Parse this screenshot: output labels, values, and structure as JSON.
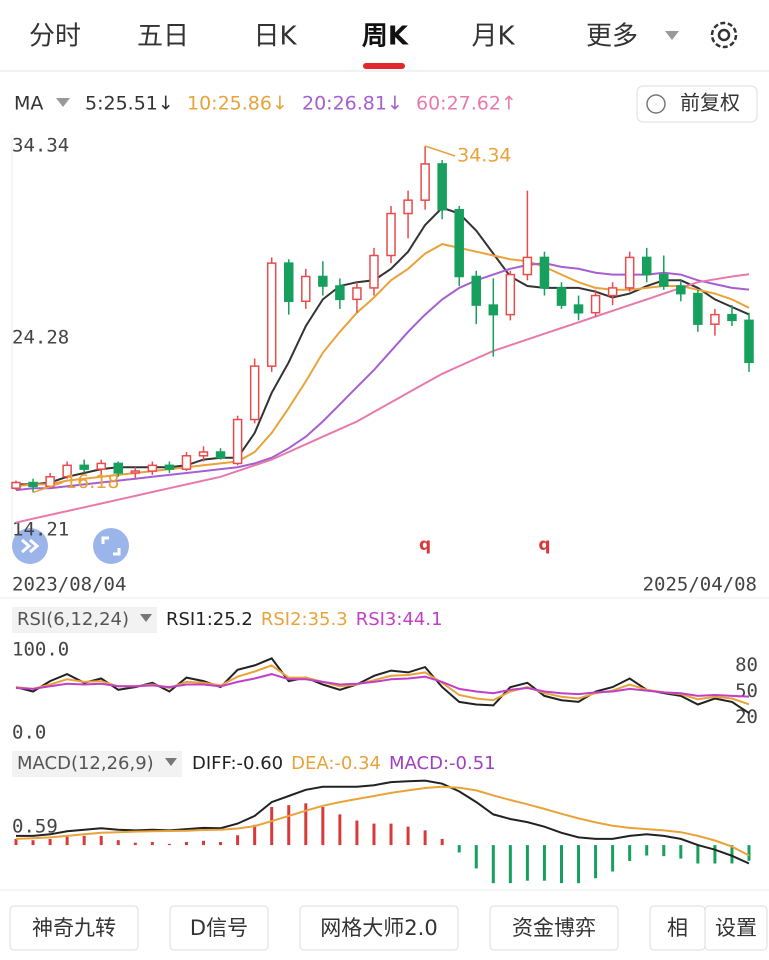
{
  "tabs": [
    "分时",
    "五日",
    "日K",
    "周K",
    "月K",
    "更多"
  ],
  "active_tab": 3,
  "buttons": [
    "神奇九转",
    "D信号",
    "网格大师2.0",
    "资金博弈",
    "相",
    "设置"
  ],
  "chart_data": [
    {
      "type": "candlestick",
      "indicator": "MA",
      "adjust": "前复权",
      "x_labels": [
        "2023/08/04",
        "2025/04/08"
      ],
      "up_color": "#e84b4b",
      "down_color": "#17a05d",
      "open": [
        16.4,
        16.7,
        16.5,
        17.0,
        17.6,
        17.4,
        17.7,
        17.2,
        17.3,
        17.6,
        17.4,
        18.1,
        18.3,
        17.7,
        20.0,
        22.8,
        28.2,
        26.2,
        27.5,
        27.0,
        26.3,
        26.9,
        28.6,
        30.8,
        31.5,
        33.4,
        31.0,
        27.5,
        26.0,
        25.5,
        27.6,
        28.5,
        26.9,
        26.0,
        25.6,
        26.5,
        26.9,
        28.5,
        27.6,
        27.0,
        26.6,
        25.0,
        25.5,
        25.2
      ],
      "high": [
        16.8,
        16.9,
        17.2,
        17.8,
        17.9,
        17.9,
        17.8,
        17.5,
        17.8,
        17.8,
        18.3,
        18.6,
        18.5,
        20.2,
        23.2,
        28.5,
        28.4,
        27.9,
        28.3,
        27.4,
        27.2,
        29.0,
        31.2,
        32.0,
        34.34,
        33.6,
        31.2,
        27.8,
        27.4,
        27.8,
        32.0,
        28.8,
        27.2,
        26.5,
        26.8,
        27.2,
        28.8,
        29.0,
        28.6,
        27.3,
        26.8,
        25.8,
        26.0,
        25.6
      ],
      "low": [
        16.3,
        16.18,
        16.4,
        16.9,
        17.2,
        17.1,
        17.0,
        16.9,
        17.1,
        17.2,
        17.3,
        17.8,
        17.9,
        17.6,
        19.8,
        22.5,
        25.5,
        25.8,
        26.5,
        25.8,
        25.6,
        26.5,
        28.2,
        29.5,
        31.0,
        30.5,
        27.0,
        25.0,
        23.3,
        25.2,
        27.3,
        26.5,
        25.8,
        25.2,
        25.4,
        26.0,
        26.7,
        27.2,
        26.8,
        26.2,
        24.6,
        24.4,
        24.9,
        22.5
      ],
      "close": [
        16.7,
        16.5,
        17.0,
        17.6,
        17.4,
        17.7,
        17.2,
        17.3,
        17.6,
        17.4,
        18.1,
        18.3,
        18.0,
        20.0,
        22.8,
        28.2,
        26.2,
        27.5,
        27.0,
        26.3,
        26.9,
        28.6,
        30.8,
        31.5,
        33.4,
        31.0,
        27.5,
        26.0,
        25.5,
        27.6,
        28.5,
        26.9,
        26.0,
        25.6,
        26.5,
        26.9,
        28.5,
        27.6,
        27.0,
        26.6,
        25.0,
        25.5,
        25.2,
        23.0
      ],
      "series": [
        {
          "name": "5",
          "legend": "5:25.51↓",
          "color": "#333333",
          "values": [
            16.6,
            16.6,
            16.7,
            17.0,
            17.2,
            17.4,
            17.5,
            17.5,
            17.5,
            17.5,
            17.6,
            17.9,
            18.0,
            18.0,
            19.3,
            21.4,
            23.0,
            24.9,
            26.3,
            27.0,
            27.2,
            27.3,
            27.9,
            28.8,
            30.2,
            31.1,
            30.8,
            29.9,
            28.7,
            27.5,
            27.0,
            26.9,
            26.9,
            26.9,
            26.7,
            26.4,
            26.6,
            27.0,
            27.3,
            27.3,
            26.9,
            26.3,
            25.9,
            25.51
          ]
        },
        {
          "name": "10",
          "legend": "10:25.86↓",
          "color": "#e8a33a",
          "values": [
            16.5,
            16.6,
            16.6,
            16.8,
            16.9,
            17.0,
            17.1,
            17.2,
            17.3,
            17.4,
            17.5,
            17.6,
            17.7,
            17.8,
            18.3,
            19.3,
            20.6,
            22.0,
            23.5,
            24.6,
            25.6,
            26.4,
            27.3,
            27.9,
            28.7,
            29.2,
            29.0,
            28.8,
            28.6,
            28.4,
            28.3,
            28.0,
            27.6,
            27.2,
            26.9,
            26.8,
            26.8,
            26.9,
            27.0,
            27.0,
            26.8,
            26.6,
            26.3,
            25.86
          ]
        },
        {
          "name": "20",
          "legend": "20:26.81↓",
          "color": "#a65fd0",
          "values": [
            16.3,
            16.4,
            16.4,
            16.5,
            16.6,
            16.7,
            16.8,
            16.9,
            17.0,
            17.1,
            17.2,
            17.3,
            17.4,
            17.5,
            17.7,
            18.0,
            18.5,
            19.1,
            19.9,
            20.8,
            21.7,
            22.6,
            23.6,
            24.6,
            25.5,
            26.3,
            26.9,
            27.3,
            27.6,
            27.9,
            28.1,
            28.2,
            28.0,
            27.9,
            27.7,
            27.6,
            27.6,
            27.6,
            27.7,
            27.6,
            27.3,
            27.1,
            26.9,
            26.81
          ]
        },
        {
          "name": "60",
          "legend": "60:27.62↑",
          "color": "#e87aaa",
          "values": [
            14.6,
            14.8,
            15.0,
            15.2,
            15.4,
            15.6,
            15.8,
            16.0,
            16.2,
            16.4,
            16.6,
            16.8,
            17.0,
            17.3,
            17.6,
            17.9,
            18.3,
            18.7,
            19.1,
            19.5,
            19.9,
            20.4,
            20.9,
            21.4,
            21.9,
            22.4,
            22.8,
            23.2,
            23.6,
            23.9,
            24.2,
            24.5,
            24.8,
            25.1,
            25.4,
            25.7,
            26.0,
            26.3,
            26.6,
            26.9,
            27.2,
            27.35,
            27.5,
            27.62
          ]
        }
      ],
      "ylim": [
        14.21,
        34.34
      ],
      "yticks": [
        34.34,
        24.28,
        14.21
      ],
      "annotations": [
        {
          "text": "34.34",
          "at": 24
        },
        {
          "text": "16.18",
          "at": 1
        }
      ],
      "markers": [
        {
          "text": "q",
          "at": 24
        },
        {
          "text": "q",
          "at": 31
        }
      ]
    },
    {
      "type": "line",
      "title": "RSI(6,12,24)",
      "ylim": [
        0,
        100
      ],
      "yticks": [
        {
          "value": 100,
          "label": "100.0"
        },
        {
          "value": 0,
          "label": "0.0"
        }
      ],
      "y2lim": [
        0,
        100
      ],
      "y2ticks": [
        80,
        50,
        20
      ],
      "series": [
        {
          "name": "RSI1",
          "legend": "RSI1:25.2",
          "color": "#222222",
          "values": [
            55,
            50,
            62,
            70,
            60,
            65,
            52,
            55,
            60,
            50,
            66,
            62,
            55,
            75,
            80,
            88,
            62,
            66,
            58,
            52,
            58,
            68,
            74,
            72,
            78,
            55,
            38,
            35,
            34,
            55,
            60,
            45,
            40,
            38,
            50,
            55,
            65,
            52,
            48,
            45,
            35,
            42,
            38,
            25.2
          ]
        },
        {
          "name": "RSI2",
          "legend": "RSI2:35.3",
          "color": "#e8a33a",
          "values": [
            55,
            53,
            58,
            64,
            61,
            62,
            56,
            56,
            58,
            54,
            61,
            60,
            57,
            67,
            73,
            80,
            66,
            66,
            61,
            56,
            58,
            63,
            68,
            69,
            72,
            60,
            46,
            42,
            40,
            50,
            55,
            48,
            44,
            42,
            48,
            51,
            58,
            52,
            49,
            47,
            41,
            44,
            42,
            35.3
          ]
        },
        {
          "name": "RSI3",
          "legend": "RSI3:44.1",
          "color": "#c040c8",
          "values": [
            54,
            53,
            56,
            59,
            58,
            59,
            56,
            56,
            57,
            55,
            58,
            58,
            56,
            61,
            65,
            70,
            64,
            64,
            61,
            58,
            59,
            61,
            64,
            65,
            67,
            61,
            53,
            50,
            48,
            52,
            54,
            50,
            48,
            47,
            49,
            50,
            53,
            51,
            49,
            48,
            45,
            46,
            45,
            44.1
          ]
        }
      ]
    },
    {
      "type": "macd",
      "title": "MACD(12,26,9)",
      "ylim": [
        -1.3,
        2.12
      ],
      "yticks": [
        0.59
      ],
      "series": [
        {
          "name": "DIFF",
          "legend": "DIFF:-0.60",
          "color": "#222222",
          "values": [
            0.3,
            0.3,
            0.35,
            0.45,
            0.5,
            0.55,
            0.5,
            0.48,
            0.5,
            0.48,
            0.52,
            0.56,
            0.55,
            0.7,
            0.95,
            1.4,
            1.6,
            1.8,
            1.9,
            1.9,
            1.9,
            1.95,
            2.05,
            2.08,
            2.1,
            2.0,
            1.75,
            1.4,
            1.0,
            0.85,
            0.75,
            0.6,
            0.4,
            0.25,
            0.2,
            0.2,
            0.3,
            0.35,
            0.3,
            0.2,
            0.0,
            -0.15,
            -0.35,
            -0.6
          ]
        },
        {
          "name": "DEA",
          "legend": "DEA:-0.34",
          "color": "#e8a33a",
          "values": [
            0.2,
            0.22,
            0.25,
            0.3,
            0.35,
            0.4,
            0.42,
            0.44,
            0.45,
            0.46,
            0.47,
            0.49,
            0.5,
            0.54,
            0.62,
            0.78,
            0.95,
            1.12,
            1.28,
            1.4,
            1.5,
            1.6,
            1.7,
            1.78,
            1.86,
            1.9,
            1.87,
            1.78,
            1.62,
            1.47,
            1.33,
            1.18,
            1.02,
            0.87,
            0.74,
            0.63,
            0.56,
            0.52,
            0.48,
            0.42,
            0.3,
            0.15,
            -0.05,
            -0.34
          ]
        },
        {
          "name": "MACD",
          "legend": "MACD:-0.51",
          "color": "#a040c0",
          "bars": true,
          "up_color": "#d83a3a",
          "down_color": "#17a05d",
          "values": [
            0.2,
            0.16,
            0.2,
            0.3,
            0.3,
            0.3,
            0.16,
            0.08,
            0.1,
            0.04,
            0.1,
            0.14,
            0.1,
            0.32,
            0.66,
            1.24,
            1.3,
            1.36,
            1.24,
            1.0,
            0.8,
            0.7,
            0.7,
            0.6,
            0.48,
            0.2,
            -0.24,
            -0.76,
            -1.24,
            -1.24,
            -1.16,
            -1.16,
            -1.24,
            -1.24,
            -1.08,
            -0.86,
            -0.52,
            -0.34,
            -0.36,
            -0.44,
            -0.6,
            -0.6,
            -0.6,
            -0.51
          ]
        }
      ]
    }
  ]
}
